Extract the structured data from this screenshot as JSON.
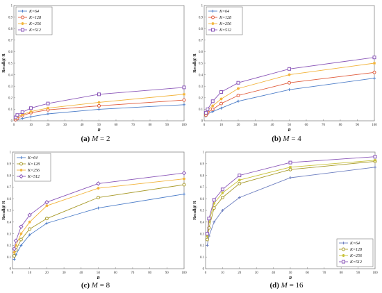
{
  "colors": {
    "K64": "#4f7fc9",
    "K128": "#e05a3a",
    "K256": "#f2b33a",
    "K512": "#8a56b8"
  },
  "chart_data": [
    {
      "type": "line",
      "caption": {
        "letter": "(a)",
        "var": "M",
        "rest": " = 2"
      },
      "xlabel": "R",
      "ylabel": "Recall@ R",
      "xlim": [
        0,
        100
      ],
      "ylim": [
        0,
        1
      ],
      "xticks": [
        0,
        10,
        20,
        30,
        40,
        50,
        60,
        70,
        80,
        90,
        100
      ],
      "yticks": [
        0,
        0.1,
        0.2,
        0.3,
        0.4,
        0.5,
        0.6,
        0.7,
        0.8,
        0.9,
        1
      ],
      "legend": "top-left",
      "x": [
        1,
        2,
        5,
        10,
        20,
        50,
        100
      ],
      "series": [
        {
          "name": "K=64",
          "marker": "plus",
          "color": "#4f7fc9",
          "values": [
            0.005,
            0.01,
            0.02,
            0.035,
            0.06,
            0.1,
            0.14
          ]
        },
        {
          "name": "K=128",
          "marker": "circle",
          "color": "#e05a3a",
          "values": [
            0.01,
            0.02,
            0.045,
            0.07,
            0.095,
            0.13,
            0.18
          ]
        },
        {
          "name": "K=256",
          "marker": "star",
          "color": "#f2b33a",
          "values": [
            0.02,
            0.035,
            0.055,
            0.08,
            0.11,
            0.16,
            0.23
          ]
        },
        {
          "name": "K=512",
          "marker": "square",
          "color": "#8a56b8",
          "values": [
            0.03,
            0.05,
            0.075,
            0.11,
            0.15,
            0.23,
            0.29
          ]
        }
      ]
    },
    {
      "type": "line",
      "caption": {
        "letter": "(b)",
        "var": "M",
        "rest": " = 4"
      },
      "xlabel": "R",
      "ylabel": "Recall@ R",
      "xlim": [
        0,
        100
      ],
      "ylim": [
        0,
        1
      ],
      "xticks": [
        0,
        10,
        20,
        30,
        40,
        50,
        60,
        70,
        80,
        90,
        100
      ],
      "yticks": [
        0,
        0.1,
        0.2,
        0.3,
        0.4,
        0.5,
        0.6,
        0.7,
        0.8,
        0.9,
        1
      ],
      "legend": "top-left",
      "x": [
        1,
        2,
        5,
        10,
        20,
        50,
        100
      ],
      "series": [
        {
          "name": "K=64",
          "marker": "plus",
          "color": "#4f7fc9",
          "values": [
            0.04,
            0.06,
            0.08,
            0.11,
            0.17,
            0.27,
            0.37
          ]
        },
        {
          "name": "K=128",
          "marker": "circle",
          "color": "#e05a3a",
          "values": [
            0.05,
            0.07,
            0.1,
            0.15,
            0.22,
            0.33,
            0.42
          ]
        },
        {
          "name": "K=256",
          "marker": "star",
          "color": "#f2b33a",
          "values": [
            0.06,
            0.09,
            0.13,
            0.19,
            0.28,
            0.4,
            0.5
          ]
        },
        {
          "name": "K=512",
          "marker": "square",
          "color": "#8a56b8",
          "values": [
            0.07,
            0.1,
            0.17,
            0.25,
            0.33,
            0.45,
            0.55
          ]
        }
      ]
    },
    {
      "type": "line",
      "caption": {
        "letter": "(c)",
        "var": "M",
        "rest": " = 8"
      },
      "xlabel": "R",
      "ylabel": "Recall@ R",
      "xlim": [
        0,
        100
      ],
      "ylim": [
        0,
        1
      ],
      "xticks": [
        0,
        10,
        20,
        30,
        40,
        50,
        60,
        70,
        80,
        90,
        100
      ],
      "yticks": [
        0,
        0.1,
        0.2,
        0.3,
        0.4,
        0.5,
        0.6,
        0.7,
        0.8,
        0.9,
        1
      ],
      "legend": "top-left",
      "x": [
        1,
        2,
        5,
        10,
        20,
        50,
        100
      ],
      "series": [
        {
          "name": "K=64",
          "marker": "plus",
          "color": "#4f7fc9",
          "values": [
            0.08,
            0.12,
            0.2,
            0.29,
            0.39,
            0.52,
            0.64
          ]
        },
        {
          "name": "K=128",
          "marker": "circle",
          "color": "#a89a2a",
          "values": [
            0.11,
            0.16,
            0.25,
            0.34,
            0.43,
            0.61,
            0.72
          ]
        },
        {
          "name": "K=256",
          "marker": "star",
          "color": "#f2b33a",
          "values": [
            0.14,
            0.2,
            0.3,
            0.4,
            0.54,
            0.69,
            0.77
          ]
        },
        {
          "name": "K=512",
          "marker": "diamond",
          "color": "#8a56b8",
          "values": [
            0.17,
            0.24,
            0.36,
            0.46,
            0.57,
            0.73,
            0.82
          ]
        }
      ]
    },
    {
      "type": "line",
      "caption": {
        "letter": "(d)",
        "var": "M",
        "rest": " = 16"
      },
      "xlabel": "R",
      "ylabel": "Recall@ R",
      "xlim": [
        0,
        100
      ],
      "ylim": [
        0,
        1
      ],
      "xticks": [
        0,
        10,
        20,
        30,
        40,
        50,
        60,
        70,
        80,
        90,
        100
      ],
      "yticks": [
        0,
        0.1,
        0.2,
        0.3,
        0.4,
        0.5,
        0.6,
        0.7,
        0.8,
        0.9,
        1
      ],
      "legend": "bottom-right",
      "x": [
        1,
        2,
        5,
        10,
        20,
        50,
        100
      ],
      "series": [
        {
          "name": "K=64",
          "marker": "plus",
          "color": "#6d7fc0",
          "values": [
            0.2,
            0.28,
            0.4,
            0.5,
            0.61,
            0.78,
            0.87
          ]
        },
        {
          "name": "K=128",
          "marker": "circle",
          "color": "#a89a2a",
          "values": [
            0.25,
            0.35,
            0.52,
            0.61,
            0.73,
            0.85,
            0.92
          ]
        },
        {
          "name": "K=256",
          "marker": "star",
          "color": "#c9c23a",
          "values": [
            0.28,
            0.4,
            0.56,
            0.65,
            0.76,
            0.87,
            0.93
          ]
        },
        {
          "name": "K=512",
          "marker": "square",
          "color": "#8a56b8",
          "values": [
            0.3,
            0.43,
            0.59,
            0.68,
            0.8,
            0.91,
            0.96
          ]
        }
      ]
    }
  ]
}
